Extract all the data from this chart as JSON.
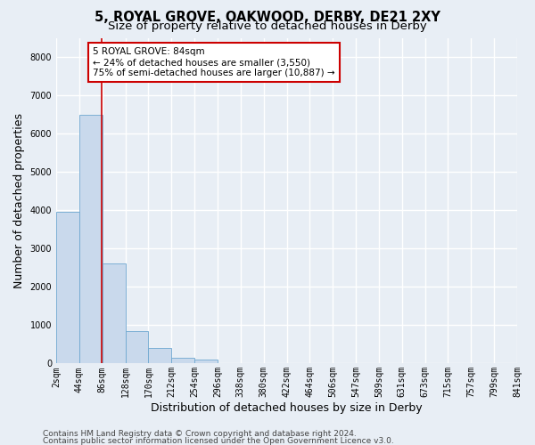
{
  "title_line1": "5, ROYAL GROVE, OAKWOOD, DERBY, DE21 2XY",
  "title_line2": "Size of property relative to detached houses in Derby",
  "xlabel": "Distribution of detached houses by size in Derby",
  "ylabel": "Number of detached properties",
  "bin_labels": [
    "2sqm",
    "44sqm",
    "86sqm",
    "128sqm",
    "170sqm",
    "212sqm",
    "254sqm",
    "296sqm",
    "338sqm",
    "380sqm",
    "422sqm",
    "464sqm",
    "506sqm",
    "547sqm",
    "589sqm",
    "631sqm",
    "673sqm",
    "715sqm",
    "757sqm",
    "799sqm",
    "841sqm"
  ],
  "n_bins": 20,
  "bar_values": [
    3950,
    6500,
    2600,
    850,
    400,
    150,
    100,
    0,
    0,
    0,
    0,
    0,
    0,
    0,
    0,
    0,
    0,
    0,
    0,
    0
  ],
  "bar_color": "#c9d9ec",
  "bar_edge_color": "#6fa8d0",
  "property_bin": 1,
  "property_label": "84sqm",
  "annotation_title": "5 ROYAL GROVE: 84sqm",
  "annotation_line1": "← 24% of detached houses are smaller (3,550)",
  "annotation_line2": "75% of semi-detached houses are larger (10,887) →",
  "annotation_box_color": "#ffffff",
  "annotation_box_edge_color": "#cc0000",
  "vline_color": "#cc0000",
  "ylim": [
    0,
    8500
  ],
  "yticks": [
    0,
    1000,
    2000,
    3000,
    4000,
    5000,
    6000,
    7000,
    8000
  ],
  "footer_line1": "Contains HM Land Registry data © Crown copyright and database right 2024.",
  "footer_line2": "Contains public sector information licensed under the Open Government Licence v3.0.",
  "background_color": "#e8eef5",
  "plot_background_color": "#e8eef5",
  "grid_color": "#ffffff",
  "title_fontsize": 10.5,
  "subtitle_fontsize": 9.5,
  "axis_label_fontsize": 9,
  "tick_fontsize": 7,
  "annotation_fontsize": 7.5,
  "footer_fontsize": 6.5
}
